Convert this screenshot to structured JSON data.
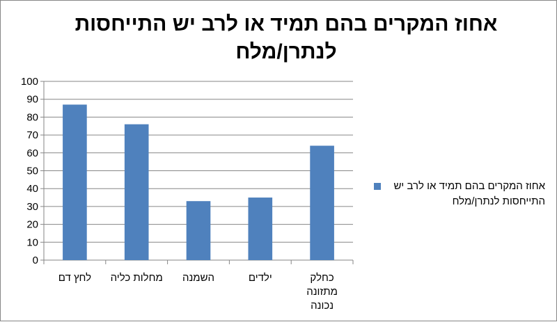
{
  "chart_data": {
    "type": "bar",
    "title": "אחוז המקרים בהם תמיד או לרב יש התייחסות לנתרן/מלח",
    "categories": [
      "לחץ דם",
      "מחלות כליה",
      "השמנה",
      "ילדים",
      "כחלק מתזונה נכונה"
    ],
    "category_lines": [
      [
        "לחץ דם"
      ],
      [
        "מחלות כליה"
      ],
      [
        "השמנה"
      ],
      [
        "ילדים"
      ],
      [
        "כחלק",
        "מתזונה",
        "נכונה"
      ]
    ],
    "series": [
      {
        "name": "אחוז המקרים בהם תמיד או לרב יש התייחסות לנתרן/מלח",
        "values": [
          87,
          76,
          33,
          35,
          64
        ],
        "color": "#4f81bd"
      }
    ],
    "ylim": [
      0,
      100
    ],
    "yticks": [
      "0",
      "10",
      "20",
      "30",
      "40",
      "50",
      "60",
      "70",
      "80",
      "90",
      "100"
    ],
    "grid": true,
    "legend_position": "right"
  }
}
